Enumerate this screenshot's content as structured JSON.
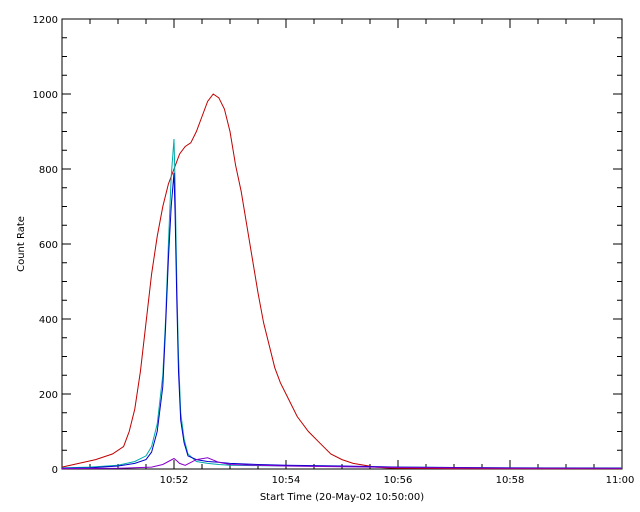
{
  "chart_data": {
    "type": "line",
    "title": "",
    "xlabel": "Start Time (20-May-02 10:50:00)",
    "ylabel": "Count Rate",
    "xlim_minutes": [
      0,
      10
    ],
    "ylim": [
      0,
      1200
    ],
    "x_ticks": [
      {
        "minutes": 2,
        "label": "10:52"
      },
      {
        "minutes": 4,
        "label": "10:54"
      },
      {
        "minutes": 6,
        "label": "10:56"
      },
      {
        "minutes": 8,
        "label": "10:58"
      },
      {
        "minutes": 10,
        "label": "11:00"
      }
    ],
    "y_ticks": [
      0,
      200,
      400,
      600,
      800,
      1000,
      1200
    ],
    "grid": false,
    "legend": "none",
    "series": [
      {
        "color": "#c00000",
        "x": [
          0.0,
          0.3,
          0.6,
          0.9,
          1.1,
          1.2,
          1.3,
          1.4,
          1.5,
          1.6,
          1.7,
          1.8,
          1.9,
          2.0,
          2.1,
          2.2,
          2.3,
          2.4,
          2.5,
          2.6,
          2.7,
          2.8,
          2.9,
          3.0,
          3.1,
          3.2,
          3.3,
          3.4,
          3.5,
          3.6,
          3.7,
          3.8,
          3.9,
          4.0,
          4.2,
          4.4,
          4.6,
          4.8,
          5.0,
          5.2,
          5.4,
          5.6,
          5.8,
          6.0,
          7.0,
          8.0,
          9.0,
          10.0
        ],
        "y": [
          5,
          15,
          25,
          40,
          60,
          100,
          160,
          260,
          390,
          520,
          620,
          700,
          760,
          800,
          840,
          860,
          870,
          900,
          940,
          980,
          1000,
          990,
          960,
          900,
          810,
          740,
          650,
          560,
          470,
          390,
          330,
          270,
          230,
          200,
          140,
          100,
          70,
          40,
          25,
          15,
          10,
          5,
          3,
          2,
          1,
          1,
          1,
          1
        ]
      },
      {
        "color": "#00aaaa",
        "x": [
          0.0,
          0.5,
          1.0,
          1.3,
          1.5,
          1.6,
          1.7,
          1.8,
          1.85,
          1.9,
          1.95,
          2.0,
          2.02,
          2.05,
          2.08,
          2.12,
          2.18,
          2.25,
          2.4,
          2.6,
          2.8,
          3.0,
          3.5,
          4.0,
          5.0,
          6.0,
          8.0,
          10.0
        ],
        "y": [
          3,
          5,
          10,
          20,
          35,
          60,
          120,
          250,
          400,
          600,
          780,
          880,
          760,
          500,
          300,
          150,
          80,
          40,
          20,
          15,
          12,
          10,
          9,
          8,
          7,
          5,
          3,
          3
        ]
      },
      {
        "color": "#0000cc",
        "x": [
          0.0,
          0.5,
          1.0,
          1.3,
          1.5,
          1.6,
          1.7,
          1.8,
          1.85,
          1.9,
          1.95,
          2.0,
          2.02,
          2.05,
          2.08,
          2.12,
          2.18,
          2.25,
          2.4,
          2.6,
          2.8,
          3.0,
          3.5,
          4.0,
          5.0,
          6.0,
          8.0,
          10.0
        ],
        "y": [
          2,
          3,
          8,
          15,
          25,
          45,
          100,
          220,
          380,
          560,
          700,
          790,
          680,
          450,
          260,
          130,
          70,
          35,
          25,
          20,
          18,
          15,
          12,
          10,
          8,
          5,
          3,
          2
        ]
      },
      {
        "color": "#8800cc",
        "x": [
          0.0,
          1.0,
          1.6,
          1.8,
          1.9,
          2.0,
          2.05,
          2.1,
          2.2,
          2.4,
          2.6,
          2.8,
          3.0,
          3.5,
          4.0,
          5.0,
          6.0,
          8.0,
          10.0
        ],
        "y": [
          1,
          2,
          5,
          12,
          20,
          28,
          22,
          15,
          10,
          25,
          30,
          18,
          12,
          10,
          8,
          6,
          4,
          2,
          2
        ]
      }
    ]
  }
}
